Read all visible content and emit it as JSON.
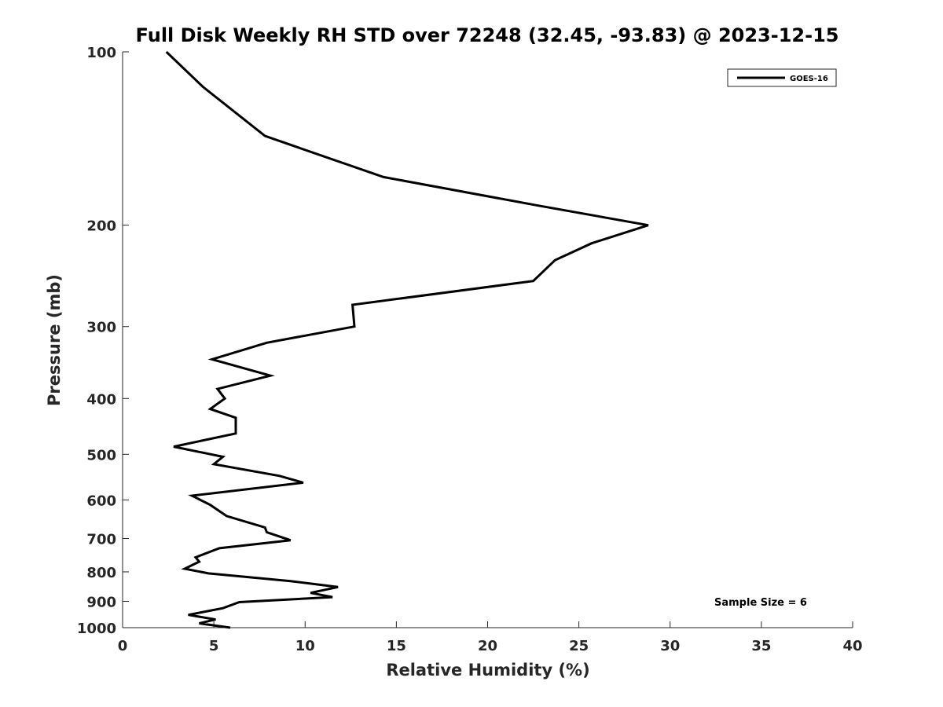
{
  "chart_data": {
    "type": "line",
    "title": "Full Disk Weekly RH STD over 72248 (32.45, -93.83) @ 2023-12-15",
    "xlabel": "Relative Humidity (%)",
    "ylabel": "Pressure (mb)",
    "xlim": [
      0,
      40
    ],
    "ylim": [
      100,
      1000
    ],
    "y_scale": "log",
    "y_reversed": true,
    "x_ticks": [
      0,
      5,
      10,
      15,
      20,
      25,
      30,
      35,
      40
    ],
    "y_ticks": [
      100,
      200,
      300,
      400,
      500,
      600,
      700,
      800,
      900,
      1000
    ],
    "grid": false,
    "legend_position": "top-right",
    "series": [
      {
        "name": "GOES-16",
        "color": "#000000",
        "x": [
          2.4,
          4.4,
          7.8,
          14.3,
          22.8,
          28.8,
          25.7,
          23.7,
          22.5,
          12.6,
          12.7,
          7.9,
          4.9,
          8.1,
          5.2,
          5.6,
          4.8,
          6.2,
          6.2,
          2.8,
          5.5,
          5.0,
          8.6,
          9.9,
          3.8,
          4.8,
          5.7,
          7.8,
          7.9,
          9.2,
          5.3,
          4.0,
          4.2,
          3.4,
          4.7,
          9.2,
          11.8,
          10.3,
          11.5,
          6.4,
          5.5,
          3.6,
          5.1,
          4.2,
          5.9
        ],
        "y": [
          100,
          115,
          140,
          165,
          185,
          200,
          215,
          230,
          250,
          275,
          300,
          320,
          342,
          365,
          385,
          400,
          417,
          432,
          460,
          485,
          505,
          520,
          545,
          560,
          590,
          612,
          640,
          670,
          683,
          705,
          728,
          755,
          768,
          790,
          805,
          830,
          850,
          870,
          885,
          903,
          925,
          950,
          968,
          983,
          1000
        ]
      }
    ],
    "annotations": [
      "Sample Size = 6"
    ]
  }
}
